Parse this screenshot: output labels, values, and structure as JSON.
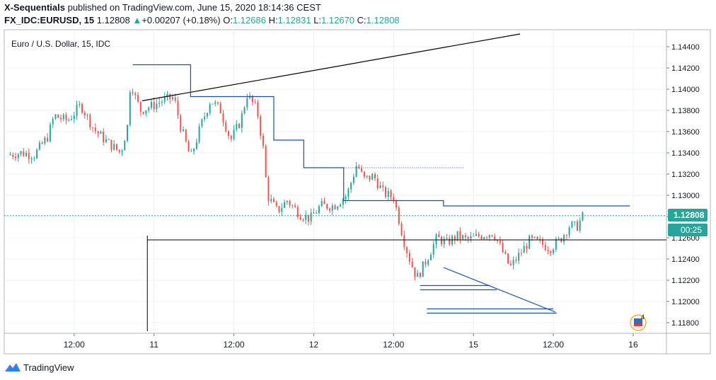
{
  "header": {
    "publisher": "X-Sequentials",
    "published_text": "published on TradingView.com, June 15, 2020 18:14:36 CEST",
    "symbol": "FX_IDC:EURUSD, 15",
    "last": "1.12808",
    "change": "+0.00207 (+0.18%)",
    "open_label": "O:",
    "open": "1.12686",
    "high_label": "H:",
    "high": "1.12831",
    "low_label": "L:",
    "low": "1.12670",
    "close_label": "C:",
    "close": "1.12808"
  },
  "legend_title": "Euro / U.S. Dollar, 15, IDC",
  "price_badge": "1.12808",
  "countdown_badge": "00:25",
  "flag_badge": "4",
  "footer": {
    "brand": "TradingView"
  },
  "colors": {
    "up": "#26a69a",
    "down": "#ef5350",
    "line_blue": "#1e4fa0",
    "teal_dotted": "#26a69a",
    "black": "#000000",
    "badge": "#26a69a"
  },
  "chart_data": {
    "type": "candlestick",
    "title": "Euro / U.S. Dollar, 15, IDC",
    "y_ticks": [
      "1.14400",
      "1.14200",
      "1.14000",
      "1.13800",
      "1.13600",
      "1.13400",
      "1.13200",
      "1.13000",
      "1.12800",
      "1.12600",
      "1.12400",
      "1.12200",
      "1.12000",
      "1.11800"
    ],
    "y_range": [
      1.117,
      1.1456
    ],
    "x_ticks": [
      "12:00",
      "11",
      "12:00",
      "12",
      "12:00",
      "15",
      "12:00",
      "16"
    ],
    "x_tick_times": [
      14,
      26,
      38,
      50,
      62,
      74,
      86,
      98
    ],
    "x_range": [
      3.5,
      103
    ],
    "last_price": 1.12808,
    "current_price_line": 1.12808,
    "series": {
      "name": "EURUSD",
      "key_closes": [
        [
          4,
          1.1338
        ],
        [
          6,
          1.134
        ],
        [
          8,
          1.1338
        ],
        [
          10,
          1.1355
        ],
        [
          11,
          1.1375
        ],
        [
          13,
          1.137
        ],
        [
          15,
          1.1385
        ],
        [
          17,
          1.1362
        ],
        [
          19,
          1.135
        ],
        [
          21,
          1.134
        ],
        [
          22,
          1.1365
        ],
        [
          22.5,
          1.141
        ],
        [
          23,
          1.1395
        ],
        [
          24,
          1.138
        ],
        [
          26,
          1.1385
        ],
        [
          27.5,
          1.139
        ],
        [
          29,
          1.1392
        ],
        [
          30,
          1.1365
        ],
        [
          31.5,
          1.1335
        ],
        [
          33,
          1.1365
        ],
        [
          34.5,
          1.139
        ],
        [
          36,
          1.138
        ],
        [
          37.5,
          1.1352
        ],
        [
          39,
          1.137
        ],
        [
          40,
          1.1395
        ],
        [
          41.5,
          1.138
        ],
        [
          42.5,
          1.134
        ],
        [
          43,
          1.13
        ],
        [
          44.5,
          1.1285
        ],
        [
          46,
          1.1295
        ],
        [
          48,
          1.1282
        ],
        [
          49.5,
          1.1278
        ],
        [
          51,
          1.129
        ],
        [
          53,
          1.129
        ],
        [
          55,
          1.13
        ],
        [
          56.5,
          1.133
        ],
        [
          57.5,
          1.1315
        ],
        [
          59,
          1.1318
        ],
        [
          60.5,
          1.1302
        ],
        [
          62,
          1.1298
        ],
        [
          63,
          1.1272
        ],
        [
          63.5,
          1.1258
        ],
        [
          64.5,
          1.1238
        ],
        [
          65.5,
          1.1222
        ],
        [
          67,
          1.124
        ],
        [
          68.5,
          1.126
        ],
        [
          70,
          1.1255
        ],
        [
          71.5,
          1.1262
        ],
        [
          73,
          1.1258
        ],
        [
          75,
          1.1262
        ],
        [
          77,
          1.1265
        ],
        [
          78.5,
          1.1245
        ],
        [
          79.5,
          1.1232
        ],
        [
          81,
          1.1245
        ],
        [
          82.5,
          1.1258
        ],
        [
          84,
          1.1255
        ],
        [
          85.5,
          1.125
        ],
        [
          87,
          1.1258
        ],
        [
          88.5,
          1.1272
        ],
        [
          89.5,
          1.127
        ],
        [
          90.5,
          1.1281
        ]
      ]
    },
    "drawings": {
      "trendline": {
        "from": [
          24.2,
          1.1389
        ],
        "to": [
          81,
          1.1452
        ]
      },
      "step_line": [
        [
          22.8,
          1.1423
        ],
        [
          31.5,
          1.1423
        ],
        [
          31.5,
          1.1393
        ],
        [
          44,
          1.1393
        ],
        [
          44,
          1.1352
        ],
        [
          48.5,
          1.1352
        ],
        [
          48.5,
          1.1326
        ],
        [
          54.5,
          1.1326
        ],
        [
          54.5,
          1.1295
        ],
        [
          69.5,
          1.1295
        ],
        [
          69.5,
          1.129
        ],
        [
          97.5,
          1.129
        ]
      ],
      "support_line": {
        "x": [
          25,
          103
        ],
        "y": 1.1258
      },
      "vertical_line": {
        "x": 25,
        "y": [
          1.1172,
          1.1262
        ]
      },
      "resistance_dotted": {
        "x": [
          48.5,
          72.5
        ],
        "y": 1.1326
      },
      "falling_wedge": [
        [
          69.5,
          1.1232
        ],
        [
          86.3,
          1.119
        ]
      ],
      "target_lines": [
        {
          "x": [
            66,
            76.5
          ],
          "y": 1.1215
        },
        {
          "x": [
            66,
            77.5
          ],
          "y": 1.1211
        },
        {
          "x": [
            67,
            86
          ],
          "y": 1.1193
        },
        {
          "x": [
            67,
            86.5
          ],
          "y": 1.1189
        }
      ]
    }
  }
}
